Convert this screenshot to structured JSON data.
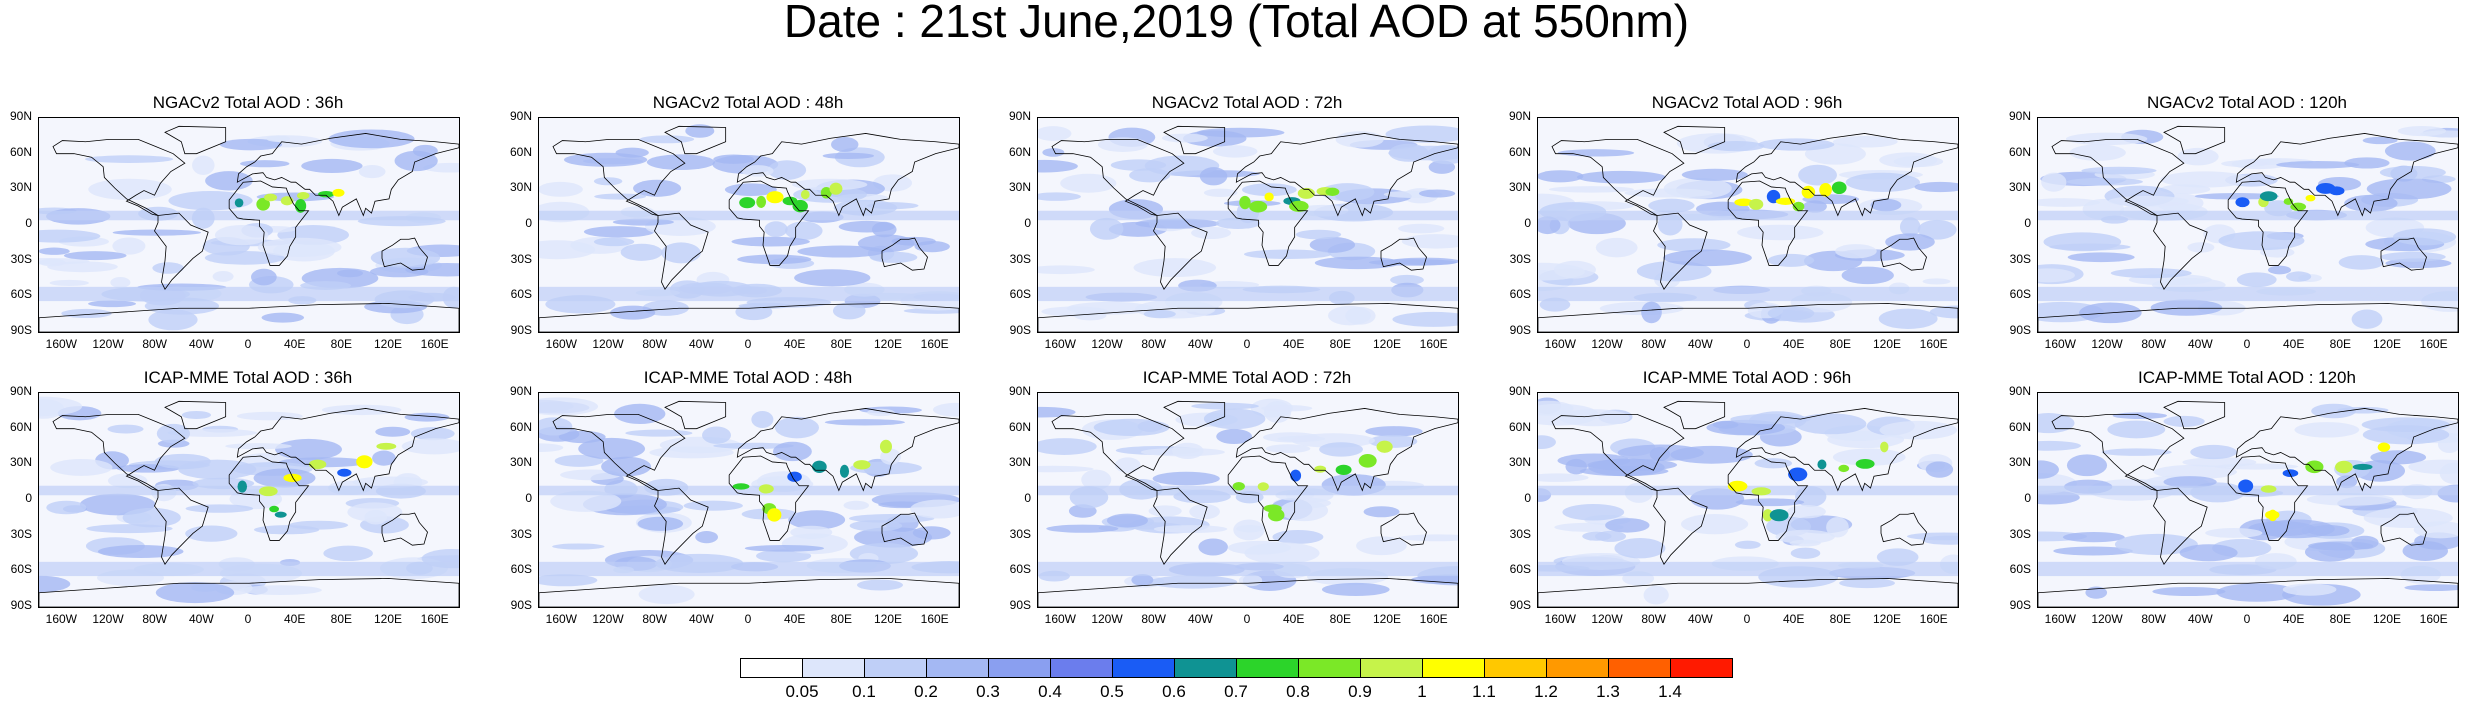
{
  "title": "Date : 21st June,2019 (Total AOD at 550nm)",
  "lat_ticks": [
    "90N",
    "60N",
    "30N",
    "0",
    "30S",
    "60S",
    "90S"
  ],
  "lon_ticks": [
    "160W",
    "120W",
    "80W",
    "40W",
    "0",
    "40E",
    "80E",
    "120E",
    "160E"
  ],
  "panels": [
    {
      "label": "NGACv2 Total AOD : 36h"
    },
    {
      "label": "NGACv2 Total AOD : 48h"
    },
    {
      "label": "NGACv2 Total AOD : 72h"
    },
    {
      "label": "NGACv2 Total AOD : 96h"
    },
    {
      "label": "NGACv2 Total AOD : 120h"
    },
    {
      "label": "ICAP-MME Total AOD : 36h"
    },
    {
      "label": "ICAP-MME Total AOD : 48h"
    },
    {
      "label": "ICAP-MME Total AOD : 72h"
    },
    {
      "label": "ICAP-MME Total AOD : 96h"
    },
    {
      "label": "ICAP-MME Total AOD : 120h"
    }
  ],
  "legend": {
    "labels": [
      "0.05",
      "0.1",
      "0.2",
      "0.3",
      "0.4",
      "0.5",
      "0.6",
      "0.7",
      "0.8",
      "0.9",
      "1",
      "1.1",
      "1.2",
      "1.3",
      "1.4"
    ],
    "colors": [
      "#ffffff",
      "#dde6fb",
      "#bfcff7",
      "#a4b8f3",
      "#8a9ff0",
      "#6b7ded",
      "#1a5cf5",
      "#0f9393",
      "#2cd42a",
      "#7be827",
      "#c6f34a",
      "#ffff00",
      "#ffc800",
      "#ff9900",
      "#ff6000",
      "#ff1a00"
    ]
  }
}
